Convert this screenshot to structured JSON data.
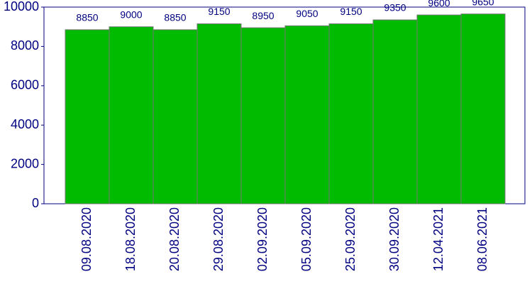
{
  "chart_data": {
    "type": "bar",
    "categories": [
      "09.08.2020",
      "18.08.2020",
      "20.08.2020",
      "29.08.2020",
      "02.09.2020",
      "05.09.2020",
      "25.09.2020",
      "30.09.2020",
      "12.04.2021",
      "08.06.2021"
    ],
    "values": [
      8850,
      9000,
      8850,
      9150,
      8950,
      9050,
      9150,
      9350,
      9600,
      9650
    ],
    "color": "#00bb00",
    "ylim": [
      0,
      10000
    ],
    "yticks": [
      0,
      2000,
      4000,
      6000,
      8000,
      10000
    ],
    "grid": false
  }
}
